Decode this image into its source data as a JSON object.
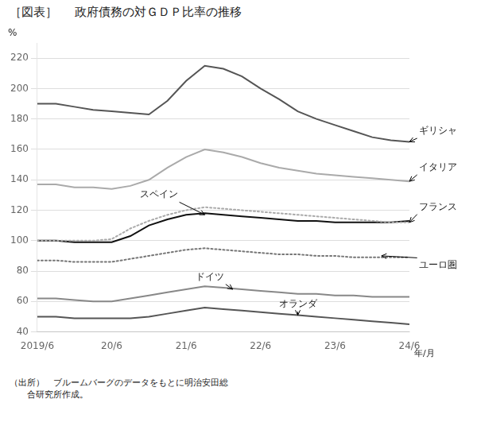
{
  "chart_data": {
    "type": "line",
    "title": [
      "［図表］",
      "政府債務の対ＧＤＰ比率の推移"
    ],
    "ylabel": "%",
    "xlabel": "年/月",
    "source": "（出所）　ブルームバーグのデータをもとに明治安田総\n　　合研究所作成。",
    "x": [
      0,
      1,
      2,
      3,
      4,
      5,
      6,
      7,
      8,
      9,
      10,
      11,
      12,
      13,
      14,
      15,
      16,
      17,
      18,
      19,
      20
    ],
    "xlim": [
      0,
      20
    ],
    "xticks": [
      {
        "value": 0,
        "label": "2019/6"
      },
      {
        "value": 4,
        "label": "20/6"
      },
      {
        "value": 8,
        "label": "21/6"
      },
      {
        "value": 12,
        "label": "22/6"
      },
      {
        "value": 16,
        "label": "23/6"
      },
      {
        "value": 20,
        "label": "24/6"
      }
    ],
    "ylim": [
      40,
      230
    ],
    "yticks": [
      40,
      60,
      80,
      100,
      120,
      140,
      160,
      180,
      200,
      220
    ],
    "grid": true,
    "series": [
      {
        "name": "ギリシャ",
        "color": "#555555",
        "line_style": "solid",
        "values": [
          190,
          190,
          188,
          186,
          185,
          184,
          183,
          192,
          205,
          215,
          213,
          208,
          200,
          193,
          185,
          180,
          176,
          172,
          168,
          166,
          165
        ]
      },
      {
        "name": "イタリア",
        "color": "#aaaaaa",
        "line_style": "solid",
        "values": [
          137,
          137,
          135,
          135,
          134,
          136,
          140,
          148,
          155,
          160,
          158,
          155,
          151,
          148,
          146,
          144,
          143,
          142,
          141,
          140,
          139
        ]
      },
      {
        "name": "フランス",
        "color": "#aaaaaa",
        "line_style": "dotted",
        "values": [
          100,
          100,
          100,
          100,
          101,
          108,
          113,
          117,
          120,
          122,
          121,
          120,
          119,
          118,
          117,
          116,
          115,
          114,
          113,
          112,
          112
        ]
      },
      {
        "name": "スペイン",
        "color": "#111111",
        "line_style": "solid",
        "values": [
          100,
          100,
          99,
          99,
          99,
          103,
          110,
          114,
          117,
          118,
          117,
          116,
          115,
          114,
          113,
          113,
          112,
          112,
          112,
          112,
          113
        ]
      },
      {
        "name": "ユーロ圏",
        "color": "#777777",
        "line_style": "dotted",
        "values": [
          87,
          87,
          86,
          86,
          86,
          88,
          90,
          92,
          94,
          95,
          94,
          93,
          92,
          91,
          91,
          90,
          90,
          89,
          89,
          89,
          89
        ]
      },
      {
        "name": "ドイツ",
        "color": "#888888",
        "line_style": "solid",
        "values": [
          62,
          62,
          61,
          60,
          60,
          62,
          64,
          66,
          68,
          70,
          69,
          68,
          67,
          66,
          65,
          65,
          64,
          64,
          63,
          63,
          63
        ]
      },
      {
        "name": "オランダ",
        "color": "#555555",
        "line_style": "solid",
        "values": [
          50,
          50,
          49,
          49,
          49,
          49,
          50,
          52,
          54,
          56,
          55,
          54,
          53,
          52,
          51,
          50,
          49,
          48,
          47,
          46,
          45
        ]
      }
    ],
    "annotations": [
      {
        "text": "ギリシャ",
        "x": 20,
        "y": 165,
        "text_x": 20.5,
        "text_y": 172
      },
      {
        "text": "イタリア",
        "x": 20,
        "y": 139,
        "text_x": 20.5,
        "text_y": 148
      },
      {
        "text": "フランス",
        "x": 20,
        "y": 112,
        "text_x": 20.5,
        "text_y": 122
      },
      {
        "text": "スペイン",
        "x": 9,
        "y": 117,
        "text_x": 5.5,
        "text_y": 130
      },
      {
        "text": "ユーロ圏",
        "x": 18.5,
        "y": 90,
        "text_x": 20.5,
        "text_y": 84
      },
      {
        "text": "ドイツ",
        "x": 10.5,
        "y": 68,
        "text_x": 8.5,
        "text_y": 76
      },
      {
        "text": "オランダ",
        "x": 14,
        "y": 51,
        "text_x": 13,
        "text_y": 58
      }
    ]
  }
}
